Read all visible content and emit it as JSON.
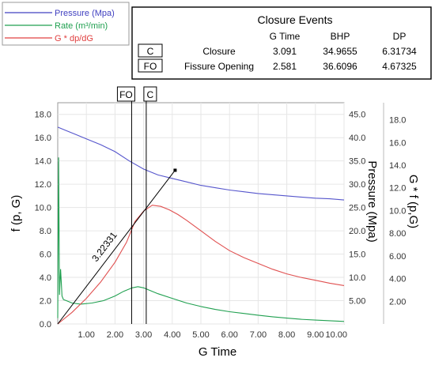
{
  "chart_data": {
    "type": "line",
    "xlabel": "G  Time",
    "ylabel_left": "f (p, G)",
    "ylabel_right_pressure": "Pressure (Mpa)",
    "ylabel_right_g": "G * f (p,G)",
    "xlim": [
      0,
      10
    ],
    "ylim_left": [
      0,
      19
    ],
    "ylim_pressure": [
      0,
      47.5
    ],
    "ylim_gf": [
      0,
      19.5
    ],
    "x_ticks": [
      "1.00",
      "2.00",
      "3.00",
      "4.00",
      "5.00",
      "6.00",
      "7.00",
      "8.00",
      "9.00",
      "10.00"
    ],
    "x_tick_values": [
      1,
      2,
      3,
      4,
      5,
      6,
      7,
      8,
      9,
      10
    ],
    "left_ticks": [
      "0.0",
      "2.0",
      "4.0",
      "6.0",
      "8.0",
      "10.0",
      "12.0",
      "14.0",
      "16.0",
      "18.0"
    ],
    "left_tick_values": [
      0,
      2,
      4,
      6,
      8,
      10,
      12,
      14,
      16,
      18
    ],
    "pressure_ticks": [
      "5.00",
      "10.0",
      "15.0",
      "20.0",
      "25.0",
      "30.0",
      "35.0",
      "40.0",
      "45.0"
    ],
    "pressure_tick_values": [
      5,
      10,
      15,
      20,
      25,
      30,
      35,
      40,
      45
    ],
    "gf_ticks": [
      "2.00",
      "4.00",
      "6.00",
      "8.00",
      "10.0",
      "12.0",
      "14.0",
      "16.0",
      "18.0"
    ],
    "gf_tick_values": [
      2,
      4,
      6,
      8,
      10,
      12,
      14,
      16,
      18
    ],
    "legend": [
      {
        "name": "Pressure (Mpa)",
        "color": "#4040c0"
      },
      {
        "name": "Rate (m³/min)",
        "color": "#20a050"
      },
      {
        "name": "G * dp/dG",
        "color": "#e04040"
      }
    ],
    "series": [
      {
        "name": "Pressure (Mpa)",
        "color": "#5555cc",
        "axis": "left",
        "x": [
          0,
          0.3,
          0.6,
          1.0,
          1.5,
          2.0,
          2.5,
          3.0,
          3.5,
          4.0,
          4.5,
          5.0,
          5.5,
          6.0,
          6.5,
          7.0,
          7.5,
          8.0,
          8.5,
          9.0,
          9.5,
          10.0
        ],
        "y": [
          16.9,
          16.6,
          16.3,
          15.9,
          15.4,
          14.8,
          14.0,
          13.3,
          12.8,
          12.5,
          12.2,
          11.9,
          11.7,
          11.5,
          11.35,
          11.2,
          11.1,
          11.0,
          10.9,
          10.8,
          10.75,
          10.65
        ]
      },
      {
        "name": "Rate (m³/min)",
        "color": "#20a050",
        "axis": "left",
        "x": [
          0,
          0.03,
          0.06,
          0.1,
          0.15,
          0.2,
          0.3,
          0.5,
          0.8,
          1.2,
          1.6,
          2.0,
          2.3,
          2.6,
          2.8,
          3.0,
          3.2,
          3.5,
          4.0,
          4.5,
          5.0,
          5.5,
          6.0,
          6.5,
          7.0,
          7.5,
          8.0,
          8.5,
          9.0,
          9.5,
          10.0
        ],
        "y": [
          0.5,
          14.3,
          2.5,
          4.7,
          2.4,
          2.1,
          2.0,
          1.8,
          1.7,
          1.8,
          2.0,
          2.4,
          2.8,
          3.1,
          3.2,
          3.1,
          2.9,
          2.6,
          2.2,
          1.8,
          1.5,
          1.25,
          1.05,
          0.9,
          0.75,
          0.62,
          0.5,
          0.4,
          0.33,
          0.28,
          0.22
        ]
      },
      {
        "name": "G * dp/dG",
        "color": "#e05050",
        "axis": "left",
        "x": [
          0,
          0.5,
          1.0,
          1.5,
          2.0,
          2.4,
          2.7,
          3.0,
          3.3,
          3.6,
          3.9,
          4.2,
          4.5,
          5.0,
          5.5,
          6.0,
          6.5,
          7.0,
          7.5,
          8.0,
          8.5,
          9.0,
          9.5,
          10.0
        ],
        "y": [
          0,
          1.0,
          2.2,
          3.6,
          5.3,
          7.0,
          8.8,
          9.7,
          10.2,
          10.1,
          9.8,
          9.4,
          8.9,
          8.0,
          7.1,
          6.3,
          5.7,
          5.2,
          4.7,
          4.3,
          4.0,
          3.75,
          3.5,
          3.3
        ]
      }
    ],
    "tangent_line": {
      "x": [
        0,
        4.1
      ],
      "y": [
        0,
        13.2
      ],
      "label": "3.22331",
      "color": "#000000"
    },
    "event_lines": [
      {
        "label": "FO",
        "x": 2.581
      },
      {
        "label": "C",
        "x": 3.091
      }
    ],
    "events_table": {
      "title": "Closure Events",
      "columns": [
        "G Time",
        "BHP",
        "DP"
      ],
      "rows": [
        {
          "code": "C",
          "name": "Closure",
          "g_time": "3.091",
          "bhp": "34.9655",
          "dp": "6.31734"
        },
        {
          "code": "FO",
          "name": "Fissure Opening",
          "g_time": "2.581",
          "bhp": "36.6096",
          "dp": "4.67325"
        }
      ]
    }
  }
}
